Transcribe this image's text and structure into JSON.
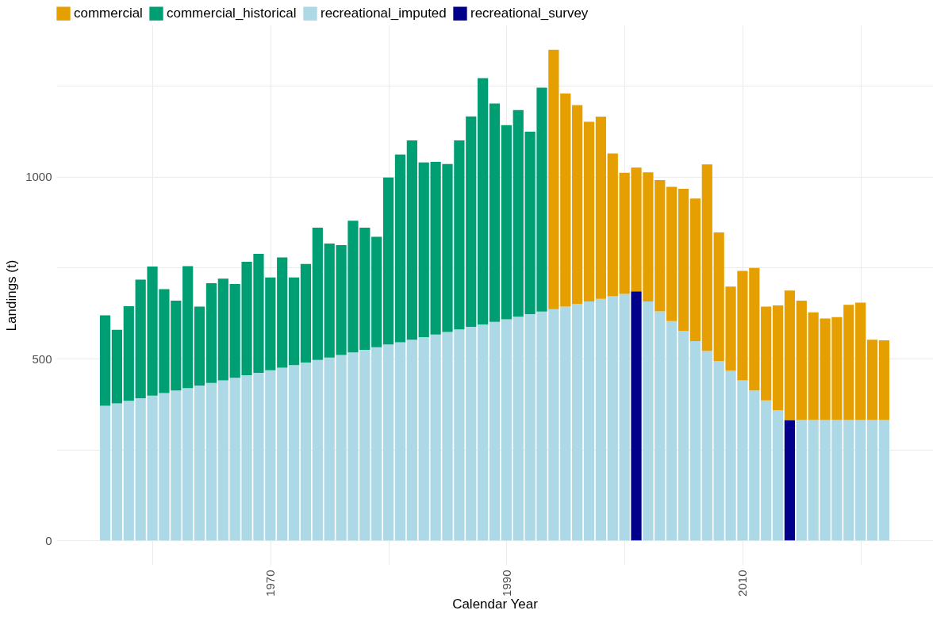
{
  "chart_data": {
    "type": "bar",
    "stacked": true,
    "xlabel": "Calendar Year",
    "ylabel": "Landings (t)",
    "legend": "top",
    "grid": true,
    "xlim": [
      1952.2,
      2025.8
    ],
    "xticks": [
      {
        "value": 1960,
        "label": null
      },
      1970,
      {
        "value": 1980,
        "label": null
      },
      1990,
      {
        "value": 2000,
        "label": null
      },
      2010,
      {
        "value": 2020,
        "label": null
      }
    ],
    "ylim": [
      -67,
      1416
    ],
    "yticks": [
      0,
      {
        "value": 250,
        "label": null
      },
      500,
      {
        "value": 750,
        "label": null
      },
      1000,
      {
        "value": 1250,
        "label": null
      }
    ],
    "x": [
      1956,
      1957,
      1958,
      1959,
      1960,
      1961,
      1962,
      1963,
      1964,
      1965,
      1966,
      1967,
      1968,
      1969,
      1970,
      1971,
      1972,
      1973,
      1974,
      1975,
      1976,
      1977,
      1978,
      1979,
      1980,
      1981,
      1982,
      1983,
      1984,
      1985,
      1986,
      1987,
      1988,
      1989,
      1990,
      1991,
      1992,
      1993,
      1994,
      1995,
      1996,
      1997,
      1998,
      1999,
      2000,
      2001,
      2002,
      2003,
      2004,
      2005,
      2006,
      2007,
      2008,
      2009,
      2010,
      2011,
      2012,
      2013,
      2014,
      2015,
      2016,
      2017,
      2018,
      2019,
      2020,
      2021,
      2022
    ],
    "series": [
      {
        "name": "recreational_imputed",
        "color": "#add8e6",
        "values": [
          370,
          377,
          384,
          391,
          398,
          405,
          412,
          419,
          426,
          433,
          440,
          447,
          454,
          461,
          468,
          475,
          482,
          489,
          496,
          503,
          510,
          517,
          524,
          531,
          539,
          545,
          552,
          559,
          566,
          573,
          580,
          587,
          594,
          601,
          608,
          615,
          622,
          629,
          636,
          643,
          650,
          657,
          664,
          671,
          678,
          null,
          657,
          630,
          603,
          576,
          548,
          521,
          493,
          467,
          440,
          412,
          385,
          358,
          null,
          331,
          331,
          331,
          331,
          331,
          331,
          331,
          331
        ]
      },
      {
        "name": "recreational_survey",
        "color": "#00008b",
        "values": [
          null,
          null,
          null,
          null,
          null,
          null,
          null,
          null,
          null,
          null,
          null,
          null,
          null,
          null,
          null,
          null,
          null,
          null,
          null,
          null,
          null,
          null,
          null,
          null,
          null,
          null,
          null,
          null,
          null,
          null,
          null,
          null,
          null,
          null,
          null,
          null,
          null,
          null,
          null,
          null,
          null,
          null,
          null,
          null,
          null,
          685,
          null,
          null,
          null,
          null,
          null,
          null,
          null,
          null,
          null,
          null,
          null,
          null,
          331,
          null,
          null,
          null,
          null,
          null,
          null,
          null,
          null
        ]
      },
      {
        "name": "commercial_historical",
        "color": "#009e73",
        "values": [
          249,
          202,
          260,
          326,
          355,
          286,
          247,
          335,
          217,
          274,
          280,
          258,
          312,
          327,
          255,
          303,
          241,
          271,
          364,
          313,
          302,
          362,
          336,
          304,
          459,
          516,
          548,
          480,
          475,
          462,
          520,
          579,
          677,
          600,
          534,
          568,
          502,
          616,
          null,
          null,
          null,
          null,
          null,
          null,
          null,
          null,
          null,
          null,
          null,
          null,
          null,
          null,
          null,
          null,
          null,
          null,
          null,
          null,
          null,
          null,
          null,
          null,
          null,
          null,
          null,
          null,
          null
        ]
      },
      {
        "name": "commercial",
        "color": "#e69f00",
        "values": [
          null,
          null,
          null,
          null,
          null,
          null,
          null,
          null,
          null,
          null,
          null,
          null,
          null,
          null,
          null,
          null,
          null,
          null,
          null,
          null,
          null,
          null,
          null,
          null,
          null,
          null,
          null,
          null,
          null,
          null,
          null,
          null,
          null,
          null,
          null,
          null,
          null,
          null,
          713,
          586,
          547,
          494,
          501,
          393,
          333,
          340,
          355,
          361,
          369,
          391,
          392,
          513,
          354,
          231,
          301,
          337,
          258,
          288,
          356,
          328,
          296,
          279,
          283,
          317,
          323,
          221,
          219
        ]
      }
    ]
  }
}
